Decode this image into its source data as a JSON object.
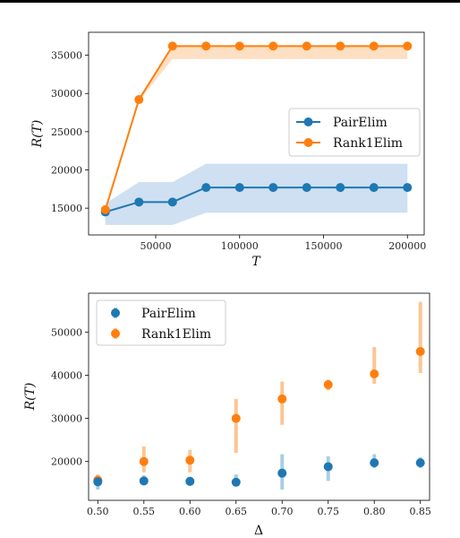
{
  "colors": {
    "pair": "#1f77b4",
    "rank1": "#ff7f0e",
    "pair_band": "#c6dbef",
    "rank1_band": "#fdd9b8"
  },
  "chart_data": [
    {
      "type": "line",
      "xlabel": "T",
      "ylabel": "R(T)",
      "xlim": [
        10000,
        210000
      ],
      "ylim": [
        11500,
        38000
      ],
      "x_ticks": [
        50000,
        100000,
        150000,
        200000
      ],
      "x_tick_labels": [
        "50000",
        "100000",
        "150000",
        "200000"
      ],
      "y_ticks": [
        15000,
        20000,
        25000,
        30000,
        35000
      ],
      "y_tick_labels": [
        "15000",
        "20000",
        "25000",
        "30000",
        "35000"
      ],
      "legend_position": "center-right",
      "x": [
        20000,
        40000,
        60000,
        80000,
        100000,
        120000,
        140000,
        160000,
        180000,
        200000
      ],
      "series": [
        {
          "name": "PairElim",
          "values": [
            14500,
            15800,
            15800,
            17700,
            17700,
            17700,
            17700,
            17700,
            17700,
            17700
          ],
          "band_low": [
            12800,
            12800,
            12800,
            14400,
            14400,
            14400,
            14400,
            14400,
            14400,
            14400
          ],
          "band_high": [
            15600,
            18400,
            18400,
            20800,
            20800,
            20800,
            20800,
            20800,
            20800,
            20800
          ]
        },
        {
          "name": "Rank1Elim",
          "values": [
            14800,
            29200,
            36200,
            36200,
            36200,
            36200,
            36200,
            36200,
            36200,
            36200
          ],
          "band_low": [
            14800,
            29000,
            34500,
            34500,
            34500,
            34500,
            34500,
            34500,
            34500,
            34500
          ],
          "band_high": [
            14800,
            29200,
            36200,
            36200,
            36200,
            36200,
            36200,
            36200,
            36200,
            36200
          ]
        }
      ]
    },
    {
      "type": "scatter",
      "xlabel": "Δ",
      "ylabel": "R(T)",
      "xlim": [
        0.49,
        0.86
      ],
      "ylim": [
        11000,
        59000
      ],
      "x_ticks": [
        0.5,
        0.55,
        0.6,
        0.65,
        0.7,
        0.75,
        0.8,
        0.85
      ],
      "x_tick_labels": [
        "0.50",
        "0.55",
        "0.60",
        "0.65",
        "0.70",
        "0.75",
        "0.80",
        "0.85"
      ],
      "y_ticks": [
        20000,
        30000,
        40000,
        50000
      ],
      "y_tick_labels": [
        "20000",
        "30000",
        "40000",
        "50000"
      ],
      "legend_position": "upper-left",
      "x": [
        0.5,
        0.55,
        0.6,
        0.65,
        0.7,
        0.75,
        0.8,
        0.85
      ],
      "series": [
        {
          "name": "PairElim",
          "values": [
            15300,
            15500,
            15400,
            15200,
            17300,
            18800,
            19700,
            19700
          ],
          "err_low": [
            13500,
            14500,
            14500,
            14300,
            13500,
            15500,
            18500,
            18500
          ],
          "err_high": [
            16500,
            16800,
            16500,
            17000,
            21700,
            21200,
            21700,
            21000
          ]
        },
        {
          "name": "Rank1Elim",
          "values": [
            15700,
            20000,
            20300,
            30000,
            34500,
            37800,
            40300,
            45500
          ],
          "err_low": [
            14500,
            17500,
            17500,
            22000,
            28500,
            36500,
            38000,
            40500
          ],
          "err_high": [
            17000,
            23500,
            22700,
            34500,
            38500,
            39000,
            46500,
            57000
          ]
        }
      ]
    }
  ]
}
